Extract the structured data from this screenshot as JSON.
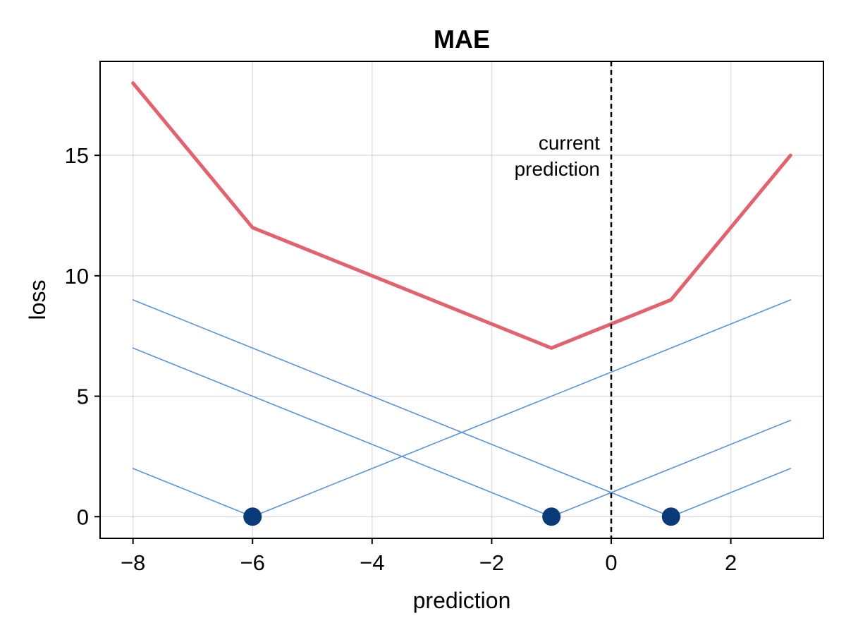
{
  "chart_data": {
    "type": "line",
    "title": "MAE",
    "xlabel": "prediction",
    "ylabel": "loss",
    "xlim": [
      -8.55,
      3.55
    ],
    "ylim": [
      -0.9,
      18.9
    ],
    "xticks": [
      -8,
      -6,
      -4,
      -2,
      0,
      2
    ],
    "xtick_labels": [
      "−8",
      "−6",
      "−4",
      "−2",
      "0",
      "2"
    ],
    "yticks": [
      0,
      5,
      10,
      15
    ],
    "ytick_labels": [
      "0",
      "5",
      "10",
      "15"
    ],
    "grid": true,
    "series": [
      {
        "values": [
          [
            -8,
            18
          ],
          [
            -6,
            12
          ],
          [
            -1,
            7
          ],
          [
            1,
            9
          ],
          [
            3,
            15
          ]
        ],
        "color": "#e0636e",
        "role": "total-loss"
      },
      {
        "values": [
          [
            -8,
            2
          ],
          [
            -6,
            0
          ],
          [
            3,
            9
          ]
        ],
        "color": "#5b93d8",
        "role": "individual-loss"
      },
      {
        "values": [
          [
            -8,
            7
          ],
          [
            -1,
            0
          ],
          [
            3,
            4
          ]
        ],
        "color": "#5b93d8",
        "role": "individual-loss"
      },
      {
        "values": [
          [
            -8,
            9
          ],
          [
            1,
            0
          ],
          [
            3,
            2
          ]
        ],
        "color": "#5b93d8",
        "role": "individual-loss"
      }
    ],
    "points": [
      [
        -6,
        0
      ],
      [
        -1,
        0
      ],
      [
        1,
        0
      ]
    ],
    "point_color": "#0b3a78",
    "vline": {
      "x": 0,
      "style": "dashed",
      "color": "#000000"
    },
    "annotation": {
      "lines": [
        "current",
        "prediction"
      ],
      "x": 0,
      "y": 15
    }
  }
}
